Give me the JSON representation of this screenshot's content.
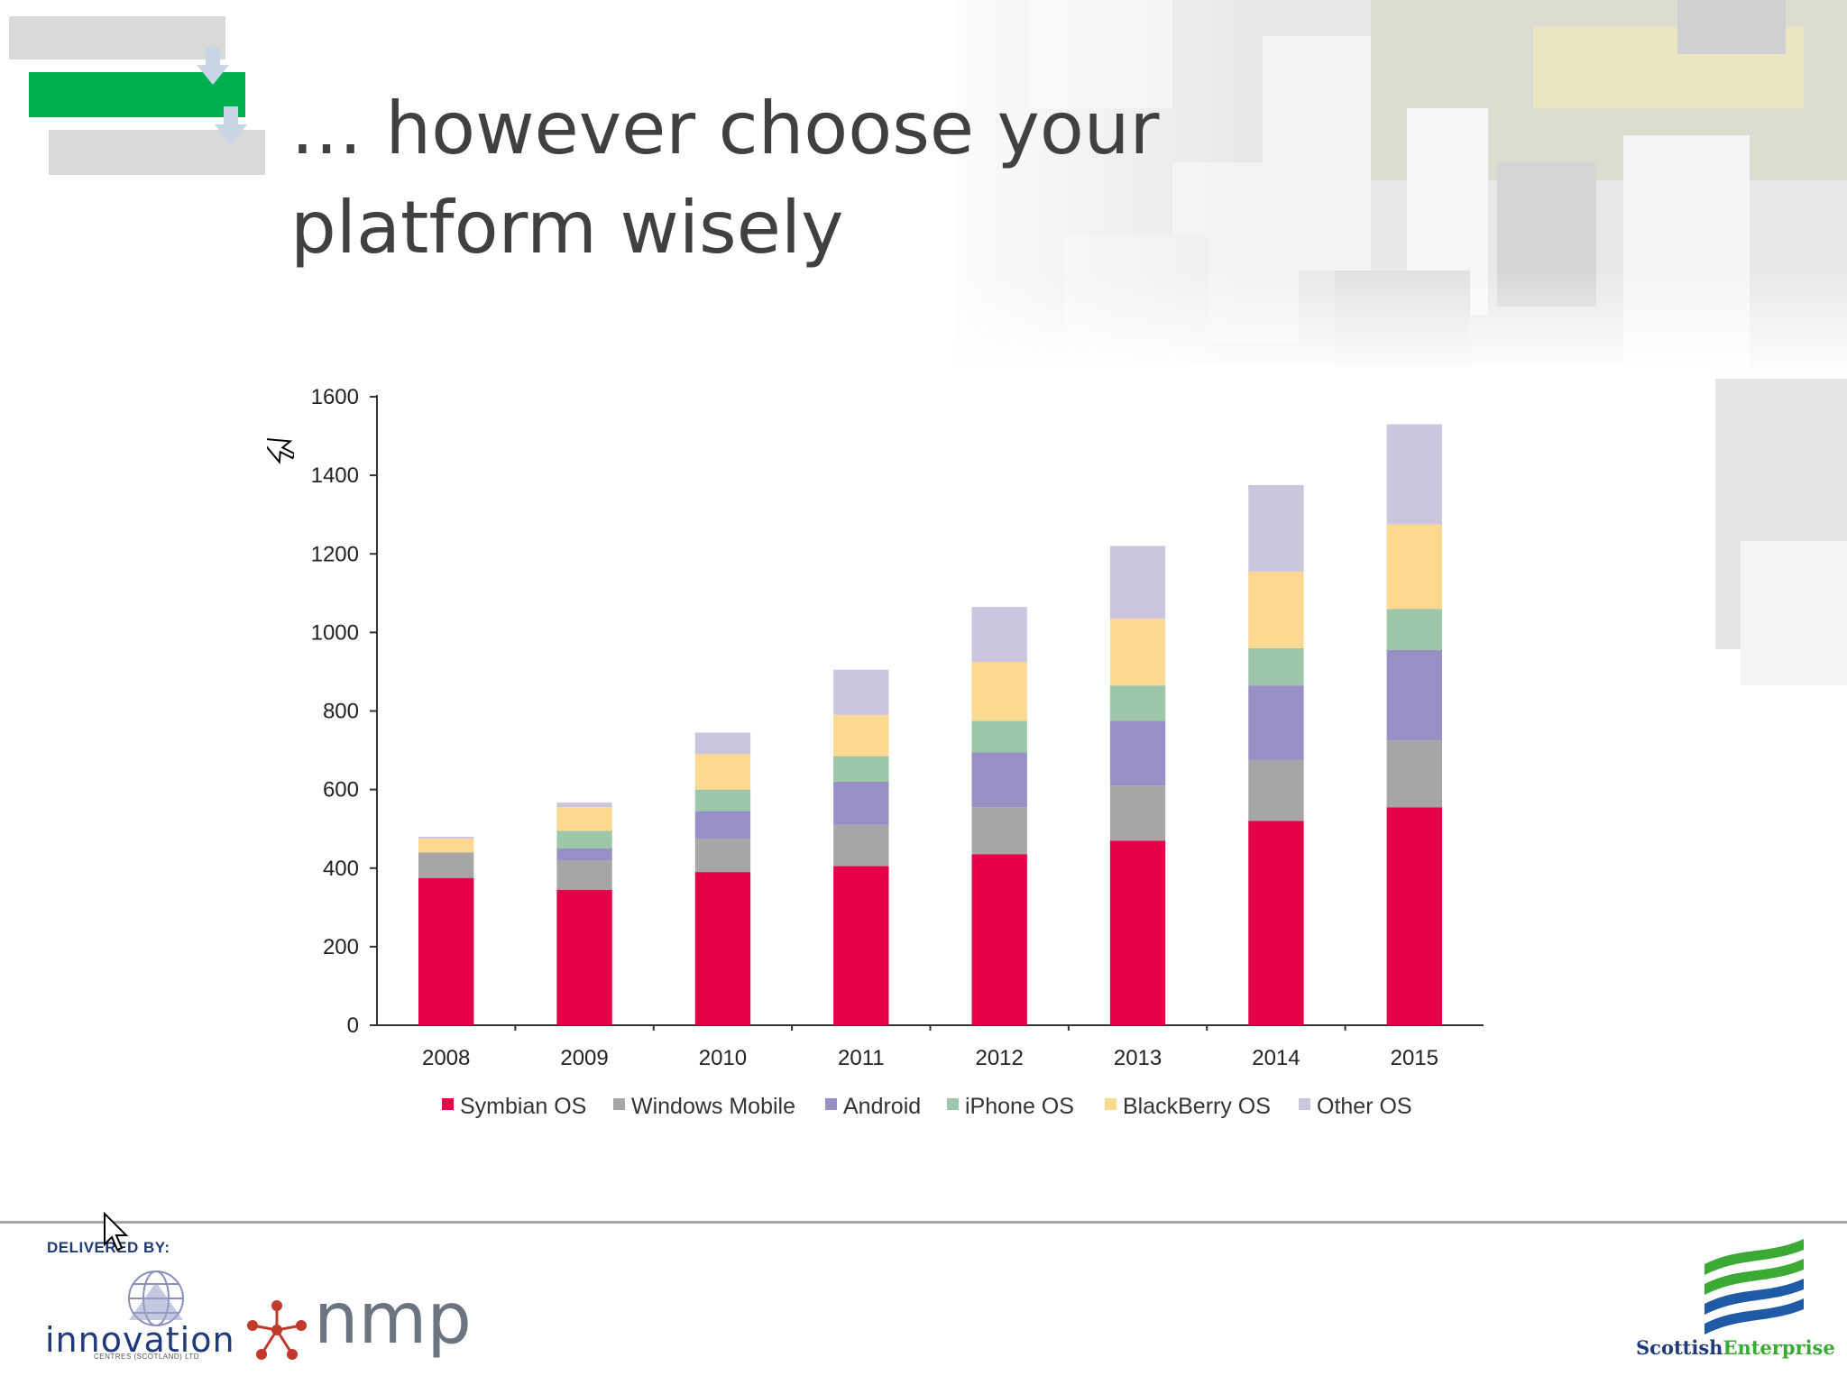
{
  "slide": {
    "title": "… however choose your platform wisely"
  },
  "chart_data": {
    "type": "bar",
    "stacked": true,
    "categories": [
      "2008",
      "2009",
      "2010",
      "2011",
      "2012",
      "2013",
      "2014",
      "2015"
    ],
    "series": [
      {
        "name": "Symbian OS",
        "color": "#e5004a",
        "values": [
          375,
          345,
          390,
          405,
          435,
          470,
          520,
          555
        ]
      },
      {
        "name": "Windows Mobile",
        "color": "#a6a6a6",
        "values": [
          65,
          75,
          85,
          105,
          120,
          140,
          155,
          170
        ]
      },
      {
        "name": "Android",
        "color": "#9690c4",
        "values": [
          0,
          30,
          70,
          110,
          140,
          165,
          190,
          230
        ]
      },
      {
        "name": "iPhone OS",
        "color": "#9ec6a8",
        "values": [
          0,
          45,
          55,
          65,
          80,
          90,
          95,
          105
        ]
      },
      {
        "name": "BlackBerry OS",
        "color": "#fcd891",
        "values": [
          35,
          60,
          90,
          105,
          150,
          170,
          195,
          215
        ]
      },
      {
        "name": "Other OS",
        "color": "#cbc6de",
        "values": [
          5,
          12,
          55,
          115,
          140,
          185,
          220,
          255
        ]
      }
    ],
    "yticks": [
      "0",
      "200",
      "400",
      "600",
      "800",
      "1000",
      "1200",
      "1400",
      "1600"
    ],
    "ylim": [
      0,
      1600
    ],
    "legend_position": "bottom",
    "grid": false
  },
  "footer": {
    "delivered_by": "DELIVERED BY:",
    "innovation": "innovation",
    "innovation_sub": "CENTRES (SCOTLAND) LTD",
    "nmp": "nmp",
    "scottish": "Scottish",
    "enterprise": "Enterprise"
  },
  "colors": {
    "accent_green": "#00b050",
    "title": "#404040",
    "symbian": "#e5004a"
  },
  "icons": [
    "mouse-cursor-icon",
    "innovation-globe-icon",
    "nmp-molecule-icon",
    "scottish-enterprise-wave-icon"
  ]
}
